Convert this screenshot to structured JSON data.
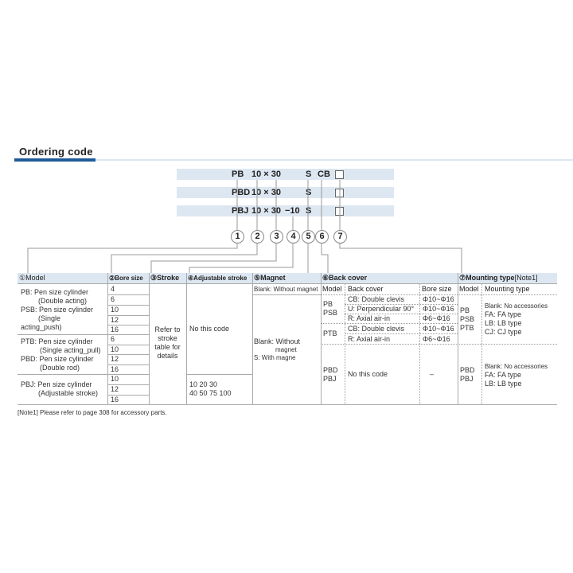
{
  "title": "Ordering code",
  "codes": [
    {
      "model": "PB",
      "size": "10 × 30",
      "adj": "",
      "magnet": "S",
      "cover": "CB"
    },
    {
      "model": "PBD",
      "size": "10 × 30",
      "adj": "",
      "magnet": "S",
      "cover": ""
    },
    {
      "model": "PBJ",
      "size": "10 × 30",
      "adj": "−10",
      "magnet": "S",
      "cover": ""
    }
  ],
  "markers": [
    "1",
    "2",
    "3",
    "4",
    "5",
    "6",
    "7"
  ],
  "headers": {
    "model": "①Model",
    "bore": "②Bore size",
    "stroke": "③Stroke",
    "adj": "④Adjustable stroke",
    "magnet": "⑤Magnet",
    "cover": "⑥Back cover",
    "mount": "⑦Mounting type",
    "mount_note": "[Note1]"
  },
  "models": [
    [
      "PB: Pen size cylinder",
      "(Double acting)",
      "PSB: Pen size cylinder",
      "(Single",
      "acting_push)"
    ],
    [
      "PTB: Pen size cylinder",
      "(Single acting_pull)",
      "PBD: Pen size cylinder",
      "(Double rod)"
    ],
    [
      "PBJ: Pen size cylinder",
      "(Adjustable stroke)"
    ]
  ],
  "bores": [
    "4",
    "6",
    "10",
    "12",
    "16",
    "6",
    "10",
    "12",
    "16",
    "10",
    "12",
    "16"
  ],
  "stroke": [
    "Refer to",
    "stroke",
    "table for",
    "details"
  ],
  "adjustable": {
    "none": "No this code",
    "values": [
      "10 20 30",
      "40 50 75 100"
    ]
  },
  "magnet": {
    "top": "Blank: Without magnet",
    "lines": [
      "Blank: Without",
      "magnet",
      "S: With magne"
    ]
  },
  "back_cover": {
    "cols": [
      "Model",
      "Back cover",
      "Bore size"
    ],
    "groups": [
      {
        "model": [
          "PB",
          "PSB"
        ],
        "rows": [
          [
            "CB: Double clevis",
            "Φ10~Φ16"
          ],
          [
            "U: Perpendicular 90°",
            "Φ10~Φ16"
          ],
          [
            "R: Axial air-in",
            "Φ6~Φ16"
          ]
        ]
      },
      {
        "model": [
          "PTB"
        ],
        "rows": [
          [
            "CB: Double clevis",
            "Φ10~Φ16"
          ],
          [
            "R: Axial air-in",
            "Φ6~Φ16"
          ]
        ]
      },
      {
        "model": [
          "PBD",
          "PBJ"
        ],
        "rows": [
          [
            "No this code",
            "–"
          ]
        ]
      }
    ]
  },
  "mounting": {
    "cols": [
      "Model",
      "Mounting type"
    ],
    "groups": [
      {
        "model": [
          "PB",
          "PSB",
          "PTB"
        ],
        "types": [
          "Blank: No accessories",
          "FA: FA type",
          "LB: LB type",
          "CJ: CJ type"
        ]
      },
      {
        "model": [
          "PBD",
          "PBJ"
        ],
        "types": [
          "Blank: No accessories",
          "FA: FA type",
          "LB: LB type"
        ]
      }
    ]
  },
  "note": "[Note1]  Please refer to page 308 for accessory parts.",
  "colors": {
    "accent": "#1f5a99",
    "band": "#dde7f2"
  }
}
